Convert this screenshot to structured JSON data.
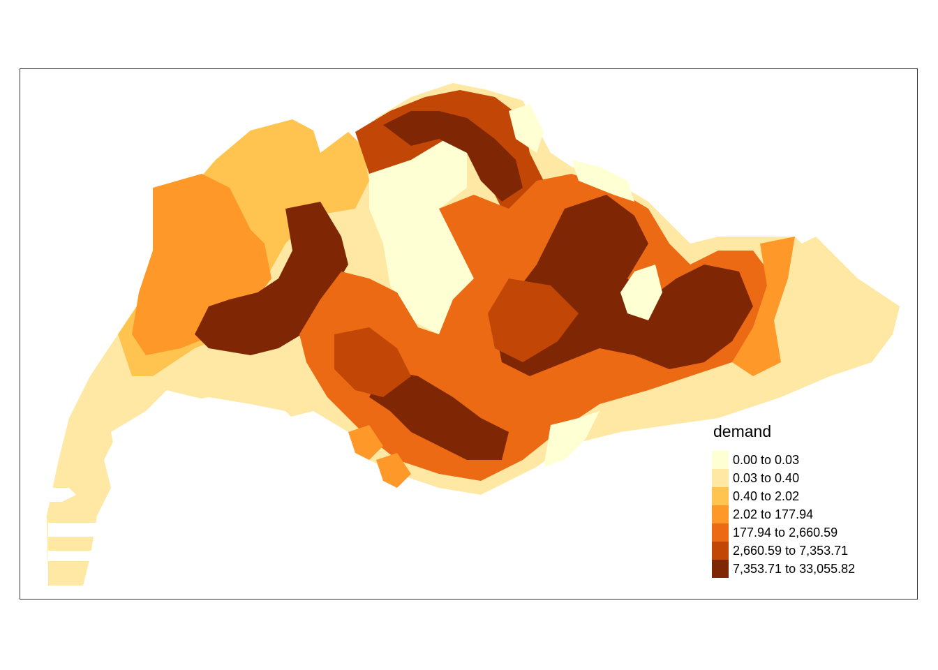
{
  "legend": {
    "title": "demand",
    "classes": [
      {
        "label": "0.00 to 0.03",
        "color": "#ffffd4"
      },
      {
        "label": "0.03 to 0.40",
        "color": "#fee8a3"
      },
      {
        "label": "0.40 to 2.02",
        "color": "#fec44f"
      },
      {
        "label": "2.02 to 177.94",
        "color": "#fe9929"
      },
      {
        "label": "177.94 to 2,660.59",
        "color": "#ec6a14"
      },
      {
        "label": "2,660.59 to 7,353.71",
        "color": "#c24606"
      },
      {
        "label": "7,353.71 to 33,055.82",
        "color": "#7f2704"
      }
    ]
  }
}
